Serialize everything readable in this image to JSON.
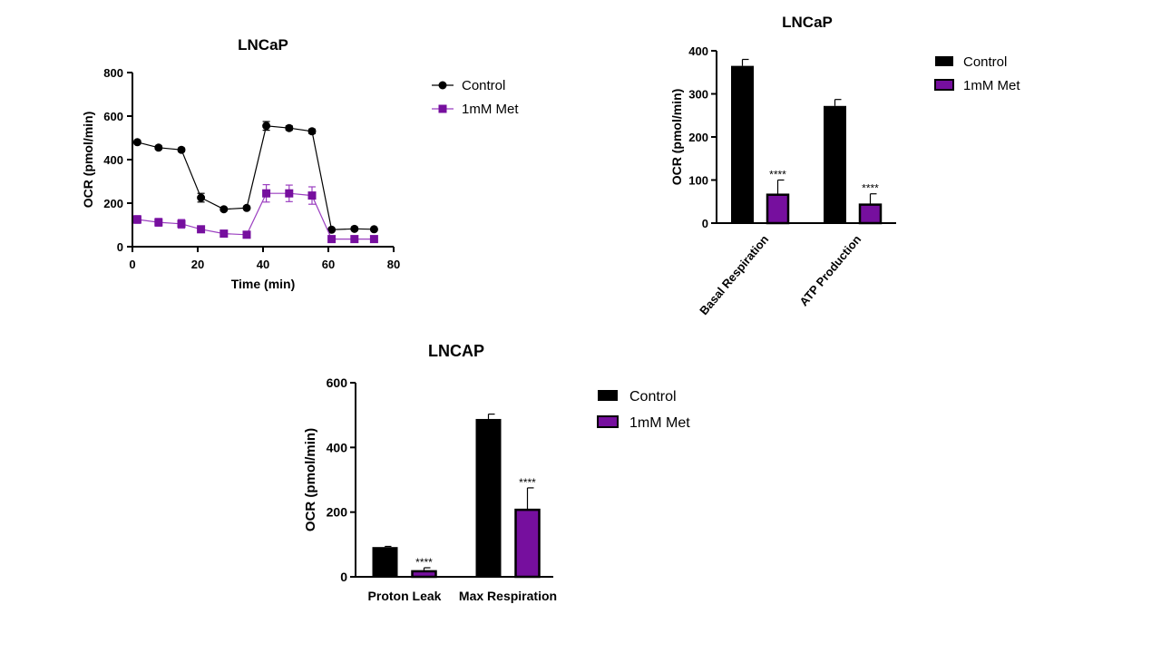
{
  "colors": {
    "control": "#000000",
    "met": "#760f9e",
    "met_line": "#9b3fc0"
  },
  "chart_data": [
    {
      "type": "line",
      "title": "LNCaP",
      "xlabel": "Time (min)",
      "ylabel": "OCR (pmol/min)",
      "xlim": [
        0,
        80
      ],
      "ylim": [
        0,
        800
      ],
      "xticks": [
        "0",
        "20",
        "40",
        "60",
        "80"
      ],
      "yticks": [
        "0",
        "200",
        "400",
        "600",
        "800"
      ],
      "legend_position": "right",
      "series": [
        {
          "name": "Control",
          "marker": "circle",
          "points": [
            {
              "x": 1.5,
              "y": 480,
              "err": 8
            },
            {
              "x": 8,
              "y": 455,
              "err": 8
            },
            {
              "x": 15,
              "y": 445,
              "err": 8
            },
            {
              "x": 21,
              "y": 225,
              "err": 20
            },
            {
              "x": 28,
              "y": 172,
              "err": 6
            },
            {
              "x": 35,
              "y": 178,
              "err": 6
            },
            {
              "x": 41,
              "y": 555,
              "err": 20
            },
            {
              "x": 48,
              "y": 545,
              "err": 10
            },
            {
              "x": 55,
              "y": 530,
              "err": 10
            },
            {
              "x": 61,
              "y": 78,
              "err": 5
            },
            {
              "x": 68,
              "y": 82,
              "err": 5
            },
            {
              "x": 74,
              "y": 80,
              "err": 5
            }
          ]
        },
        {
          "name": "1mM Met",
          "marker": "square",
          "points": [
            {
              "x": 1.5,
              "y": 125,
              "err": 18
            },
            {
              "x": 8,
              "y": 112,
              "err": 18
            },
            {
              "x": 15,
              "y": 105,
              "err": 20
            },
            {
              "x": 21,
              "y": 80,
              "err": 12
            },
            {
              "x": 28,
              "y": 60,
              "err": 6
            },
            {
              "x": 35,
              "y": 55,
              "err": 6
            },
            {
              "x": 41,
              "y": 245,
              "err": 40
            },
            {
              "x": 48,
              "y": 245,
              "err": 38
            },
            {
              "x": 55,
              "y": 235,
              "err": 40
            },
            {
              "x": 61,
              "y": 35,
              "err": 6
            },
            {
              "x": 68,
              "y": 35,
              "err": 6
            },
            {
              "x": 74,
              "y": 35,
              "err": 6
            }
          ]
        }
      ]
    },
    {
      "type": "bar",
      "title": "LNCaP",
      "ylabel": "OCR (pmol/min)",
      "ylim": [
        0,
        400
      ],
      "yticks": [
        "0",
        "100",
        "200",
        "300",
        "400"
      ],
      "categories": [
        "Basal Respiration",
        "ATP Production"
      ],
      "legend_position": "right",
      "series": [
        {
          "name": "Control",
          "values": [
            365,
            272
          ],
          "errors": [
            15,
            15
          ],
          "annotations": [
            "",
            ""
          ]
        },
        {
          "name": "1mM Met",
          "values": [
            68,
            45
          ],
          "errors": [
            32,
            23
          ],
          "annotations": [
            "****",
            "****"
          ]
        }
      ]
    },
    {
      "type": "bar",
      "title": "LNCAP",
      "ylabel": "OCR (pmol/min)",
      "ylim": [
        0,
        600
      ],
      "yticks": [
        "0",
        "200",
        "400",
        "600"
      ],
      "categories": [
        "Proton Leak",
        "Max Respiration"
      ],
      "legend_position": "right",
      "series": [
        {
          "name": "Control",
          "values": [
            92,
            488
          ],
          "errors": [
            2,
            15
          ],
          "annotations": [
            "",
            ""
          ]
        },
        {
          "name": "1mM Met",
          "values": [
            20,
            210
          ],
          "errors": [
            8,
            65
          ],
          "annotations": [
            "****",
            "****"
          ]
        }
      ]
    }
  ]
}
